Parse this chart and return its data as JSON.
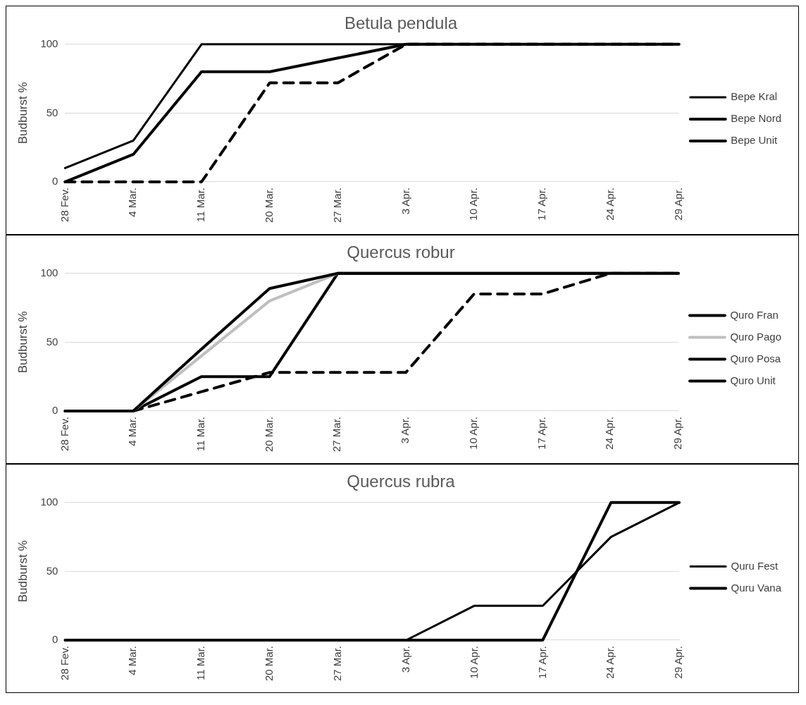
{
  "chart_data": [
    {
      "type": "line",
      "title": "Betula pendula",
      "ylabel": "Budburst %",
      "categories": [
        "28 Fev.",
        "4 Mar.",
        "11 Mar.",
        "20 Mar.",
        "27 Mar.",
        "3 Apr.",
        "10 Apr.",
        "17 Apr.",
        "24 Apr.",
        "29 Apr."
      ],
      "ylim": [
        0,
        100
      ],
      "yticks": [
        0,
        50,
        100
      ],
      "grid": "y",
      "legend": "right",
      "marker": "none",
      "series": [
        {
          "name": "Bepe Kral",
          "color": "#000000",
          "values": [
            10,
            30,
            100,
            100,
            100,
            100,
            100,
            100,
            100,
            100
          ]
        },
        {
          "name": "Bepe Nord",
          "color": "#000000",
          "line_style": "dashed",
          "values": [
            0,
            0,
            0,
            72,
            72,
            100,
            100,
            100,
            100,
            100
          ]
        },
        {
          "name": "Bepe Unit",
          "color": "#000000",
          "values": [
            0,
            20,
            80,
            80,
            90,
            100,
            100,
            100,
            100,
            100
          ]
        }
      ]
    },
    {
      "type": "line",
      "title": "Quercus robur",
      "ylabel": "Budburst %",
      "categories": [
        "28 Fev.",
        "4 Mar.",
        "11 Mar.",
        "20 Mar.",
        "27 Mar.",
        "3 Apr.",
        "10 Apr.",
        "17 Apr.",
        "24 Apr.",
        "29 Apr."
      ],
      "ylim": [
        0,
        100
      ],
      "yticks": [
        0,
        50,
        100
      ],
      "grid": "y",
      "legend": "right",
      "marker": "none",
      "series": [
        {
          "name": "Quro Fran",
          "color": "#000000",
          "values": [
            0,
            0,
            45,
            89,
            100,
            100,
            100,
            100,
            100,
            100
          ]
        },
        {
          "name": "Quro Pago",
          "color": "#bfbfbf",
          "values": [
            0,
            0,
            40,
            80,
            100,
            null,
            null,
            null,
            100,
            100
          ]
        },
        {
          "name": "Quro Posa",
          "color": "#000000",
          "line_style": "dashed",
          "values": [
            0,
            0,
            14,
            28,
            28,
            28,
            85,
            85,
            100,
            100
          ]
        },
        {
          "name": "Quro Unit",
          "color": "#000000",
          "values": [
            0,
            0,
            25,
            25,
            100,
            100,
            100,
            100,
            100,
            100
          ]
        }
      ]
    },
    {
      "type": "line",
      "title": "Quercus rubra",
      "ylabel": "Budburst %",
      "categories": [
        "28 Fev.",
        "4 Mar.",
        "11 Mar.",
        "20 Mar.",
        "27 Mar.",
        "3 Apr.",
        "10 Apr.",
        "17 Apr.",
        "24 Apr.",
        "29 Apr."
      ],
      "ylim": [
        0,
        100
      ],
      "yticks": [
        0,
        50,
        100
      ],
      "grid": "y",
      "legend": "right",
      "marker": "none",
      "series": [
        {
          "name": "Quru Fest",
          "color": "#000000",
          "values": [
            0,
            0,
            0,
            0,
            0,
            0,
            25,
            25,
            75,
            100
          ]
        },
        {
          "name": "Quru Vana",
          "color": "#000000",
          "values": [
            0,
            0,
            0,
            0,
            0,
            0,
            0,
            0,
            100,
            100
          ]
        }
      ]
    }
  ]
}
